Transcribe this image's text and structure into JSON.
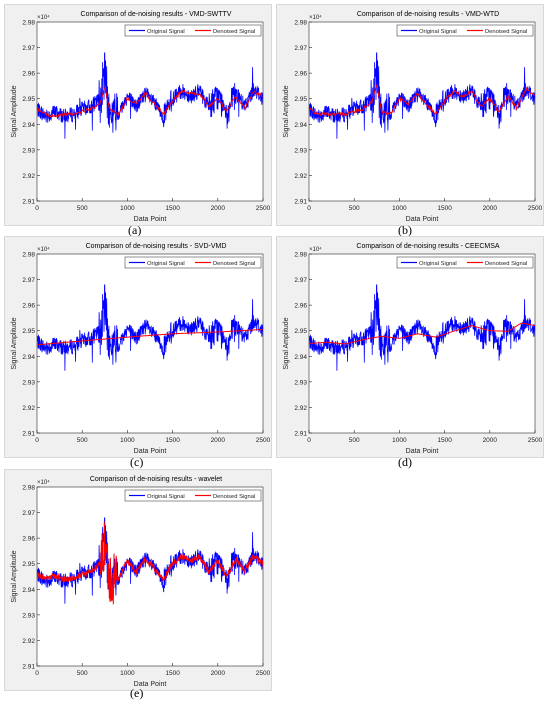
{
  "labels": {
    "xlabel": "Data Point",
    "ylabel": "Signal Amplitude",
    "exponent": "×10⁴",
    "legend_original": "Original Signal",
    "legend_denoised": "Denoised Signal"
  },
  "colors": {
    "original": "#0000ff",
    "denoised": "#ff0000",
    "panel_bg": "#f0f0f0",
    "axes_bg": "#ffffff"
  },
  "chart_data": [
    {
      "type": "line",
      "panel_tag": "(a)",
      "title": "Comparison of de-noising results - VMD-SWTTV",
      "xlim": [
        0,
        2500
      ],
      "ylim": [
        2.91,
        2.98
      ],
      "xticks": [
        0,
        500,
        1000,
        1500,
        2000,
        2500
      ],
      "yticks": [
        2.91,
        2.92,
        2.93,
        2.94,
        2.95,
        2.96,
        2.97,
        2.98
      ],
      "ytick_labels": [
        "2.91",
        "2.92",
        "2.93",
        "2.94",
        "2.95",
        "2.96",
        "2.97",
        "2.98"
      ],
      "legend": "top-right",
      "y_multiplier": "×10^4",
      "series": [
        {
          "name": "Original Signal",
          "color": "#0000ff",
          "x": [
            0,
            100,
            200,
            300,
            400,
            500,
            600,
            700,
            750,
            800,
            900,
            1000,
            1100,
            1200,
            1300,
            1400,
            1500,
            1600,
            1700,
            1800,
            1900,
            2000,
            2100,
            2200,
            2300,
            2400,
            2500
          ],
          "y": [
            2.946,
            2.943,
            2.945,
            2.943,
            2.944,
            2.946,
            2.947,
            2.95,
            2.96,
            2.944,
            2.944,
            2.951,
            2.947,
            2.952,
            2.948,
            2.943,
            2.95,
            2.953,
            2.951,
            2.953,
            2.947,
            2.951,
            2.944,
            2.952,
            2.947,
            2.954,
            2.95
          ]
        },
        {
          "name": "Denoised Signal",
          "color": "#ff0000",
          "x": [
            0,
            100,
            200,
            300,
            400,
            500,
            600,
            700,
            750,
            800,
            900,
            1000,
            1100,
            1200,
            1300,
            1400,
            1500,
            1600,
            1700,
            1800,
            1900,
            2000,
            2100,
            2200,
            2300,
            2400,
            2500
          ],
          "y": [
            2.946,
            2.944,
            2.943,
            2.944,
            2.944,
            2.945,
            2.946,
            2.948,
            2.955,
            2.946,
            2.944,
            2.95,
            2.948,
            2.952,
            2.948,
            2.944,
            2.949,
            2.953,
            2.952,
            2.952,
            2.947,
            2.95,
            2.945,
            2.951,
            2.946,
            2.953,
            2.951
          ]
        }
      ]
    },
    {
      "type": "line",
      "panel_tag": "(b)",
      "title": "Comparison of de-noising results - VMD-WTD",
      "xlim": [
        0,
        2500
      ],
      "ylim": [
        2.91,
        2.98
      ],
      "xticks": [
        0,
        500,
        1000,
        1500,
        2000,
        2500
      ],
      "yticks": [
        2.91,
        2.92,
        2.93,
        2.94,
        2.95,
        2.96,
        2.97,
        2.98
      ],
      "ytick_labels": [
        "2.91",
        "2.92",
        "2.93",
        "2.94",
        "2.95",
        "2.96",
        "2.97",
        "2.98"
      ],
      "legend": "top-right",
      "y_multiplier": "×10^4",
      "series": [
        {
          "name": "Original Signal",
          "color": "#0000ff",
          "x": [
            0,
            100,
            200,
            300,
            400,
            500,
            600,
            700,
            750,
            800,
            900,
            1000,
            1100,
            1200,
            1300,
            1400,
            1500,
            1600,
            1700,
            1800,
            1900,
            2000,
            2100,
            2200,
            2300,
            2400,
            2500
          ],
          "y": [
            2.946,
            2.943,
            2.945,
            2.943,
            2.944,
            2.946,
            2.947,
            2.95,
            2.96,
            2.944,
            2.944,
            2.951,
            2.947,
            2.952,
            2.948,
            2.943,
            2.95,
            2.953,
            2.951,
            2.953,
            2.947,
            2.951,
            2.944,
            2.952,
            2.947,
            2.954,
            2.95
          ]
        },
        {
          "name": "Denoised Signal",
          "color": "#ff0000",
          "x": [
            0,
            100,
            200,
            300,
            400,
            500,
            600,
            700,
            750,
            800,
            900,
            1000,
            1100,
            1200,
            1300,
            1400,
            1500,
            1600,
            1700,
            1800,
            1900,
            2000,
            2100,
            2200,
            2300,
            2400,
            2500
          ],
          "y": [
            2.946,
            2.944,
            2.944,
            2.944,
            2.944,
            2.945,
            2.946,
            2.949,
            2.956,
            2.945,
            2.944,
            2.95,
            2.948,
            2.952,
            2.948,
            2.944,
            2.949,
            2.953,
            2.951,
            2.953,
            2.947,
            2.95,
            2.945,
            2.951,
            2.946,
            2.954,
            2.951
          ]
        }
      ]
    },
    {
      "type": "line",
      "panel_tag": "(c)",
      "title": "Comparison of de-noising results - SVD-VMD",
      "xlim": [
        0,
        2500
      ],
      "ylim": [
        2.91,
        2.98
      ],
      "xticks": [
        0,
        500,
        1000,
        1500,
        2000,
        2500
      ],
      "yticks": [
        2.91,
        2.92,
        2.93,
        2.94,
        2.95,
        2.96,
        2.97,
        2.98
      ],
      "ytick_labels": [
        "2.91",
        "2.92",
        "2.93",
        "2.94",
        "2.95",
        "2.96",
        "2.97",
        "2.98"
      ],
      "legend": "top-right",
      "y_multiplier": "×10^4",
      "series": [
        {
          "name": "Original Signal",
          "color": "#0000ff",
          "x": [
            0,
            100,
            200,
            300,
            400,
            500,
            600,
            700,
            750,
            800,
            900,
            1000,
            1100,
            1200,
            1300,
            1400,
            1500,
            1600,
            1700,
            1800,
            1900,
            2000,
            2100,
            2200,
            2300,
            2400,
            2500
          ],
          "y": [
            2.946,
            2.943,
            2.945,
            2.943,
            2.944,
            2.946,
            2.947,
            2.95,
            2.96,
            2.944,
            2.944,
            2.951,
            2.947,
            2.952,
            2.948,
            2.943,
            2.95,
            2.953,
            2.951,
            2.953,
            2.947,
            2.951,
            2.944,
            2.952,
            2.947,
            2.954,
            2.95
          ]
        },
        {
          "name": "Denoised Signal",
          "color": "#ff0000",
          "x": [
            0,
            500,
            1000,
            1500,
            2000,
            2500
          ],
          "y": [
            2.9445,
            2.946,
            2.9475,
            2.9488,
            2.9495,
            2.9505
          ]
        }
      ]
    },
    {
      "type": "line",
      "panel_tag": "(d)",
      "title": "Comparison of de-noising results - CEECMSA",
      "xlim": [
        0,
        2500
      ],
      "ylim": [
        2.91,
        2.98
      ],
      "xticks": [
        0,
        500,
        1000,
        1500,
        2000,
        2500
      ],
      "yticks": [
        2.91,
        2.92,
        2.93,
        2.94,
        2.95,
        2.96,
        2.97,
        2.98
      ],
      "ytick_labels": [
        "2.91",
        "2.92",
        "2.93",
        "2.94",
        "2.95",
        "2.96",
        "2.97",
        "2.98"
      ],
      "legend": "top-right",
      "y_multiplier": "×10^4",
      "series": [
        {
          "name": "Original Signal",
          "color": "#0000ff",
          "x": [
            0,
            100,
            200,
            300,
            400,
            500,
            600,
            700,
            750,
            800,
            900,
            1000,
            1100,
            1200,
            1300,
            1400,
            1500,
            1600,
            1700,
            1800,
            1900,
            2000,
            2100,
            2200,
            2300,
            2400,
            2500
          ],
          "y": [
            2.946,
            2.943,
            2.945,
            2.943,
            2.944,
            2.946,
            2.947,
            2.95,
            2.96,
            2.944,
            2.944,
            2.951,
            2.947,
            2.952,
            2.948,
            2.943,
            2.95,
            2.953,
            2.951,
            2.953,
            2.947,
            2.951,
            2.944,
            2.952,
            2.947,
            2.954,
            2.95
          ]
        },
        {
          "name": "Denoised Signal",
          "color": "#ff0000",
          "x": [
            0,
            200,
            400,
            600,
            800,
            1000,
            1200,
            1400,
            1600,
            1800,
            2000,
            2200,
            2350,
            2500
          ],
          "y": [
            2.945,
            2.9455,
            2.9448,
            2.9465,
            2.9478,
            2.947,
            2.9488,
            2.9475,
            2.9498,
            2.952,
            2.95,
            2.9498,
            2.953,
            2.952
          ]
        }
      ]
    },
    {
      "type": "line",
      "panel_tag": "(e)",
      "title": "Comparison of de-noising results - wavelet",
      "xlim": [
        0,
        2500
      ],
      "ylim": [
        2.91,
        2.98
      ],
      "xticks": [
        0,
        500,
        1000,
        1500,
        2000,
        2500
      ],
      "yticks": [
        2.91,
        2.92,
        2.93,
        2.94,
        2.95,
        2.96,
        2.97,
        2.98
      ],
      "ytick_labels": [
        "2.91",
        "2.92",
        "2.93",
        "2.94",
        "2.95",
        "2.96",
        "2.97",
        "2.98"
      ],
      "legend": "top-right",
      "y_multiplier": "×10^4",
      "series": [
        {
          "name": "Original Signal",
          "color": "#0000ff",
          "x": [
            0,
            100,
            200,
            300,
            400,
            500,
            600,
            700,
            750,
            800,
            900,
            1000,
            1100,
            1200,
            1300,
            1400,
            1500,
            1600,
            1700,
            1800,
            1900,
            2000,
            2100,
            2200,
            2300,
            2400,
            2500
          ],
          "y": [
            2.946,
            2.943,
            2.945,
            2.943,
            2.944,
            2.946,
            2.947,
            2.95,
            2.96,
            2.944,
            2.944,
            2.951,
            2.947,
            2.952,
            2.948,
            2.943,
            2.95,
            2.953,
            2.951,
            2.953,
            2.947,
            2.951,
            2.944,
            2.952,
            2.947,
            2.954,
            2.95
          ]
        },
        {
          "name": "Denoised Signal",
          "color": "#ff0000",
          "x": [
            0,
            100,
            200,
            300,
            400,
            500,
            600,
            700,
            750,
            800,
            900,
            1000,
            1100,
            1200,
            1300,
            1400,
            1500,
            1600,
            1700,
            1800,
            1900,
            2000,
            2100,
            2200,
            2300,
            2400,
            2500
          ],
          "y": [
            2.946,
            2.944,
            2.945,
            2.944,
            2.944,
            2.946,
            2.947,
            2.95,
            2.958,
            2.945,
            2.944,
            2.951,
            2.947,
            2.952,
            2.948,
            2.944,
            2.95,
            2.953,
            2.951,
            2.953,
            2.947,
            2.951,
            2.945,
            2.952,
            2.947,
            2.953,
            2.95
          ]
        }
      ]
    }
  ]
}
